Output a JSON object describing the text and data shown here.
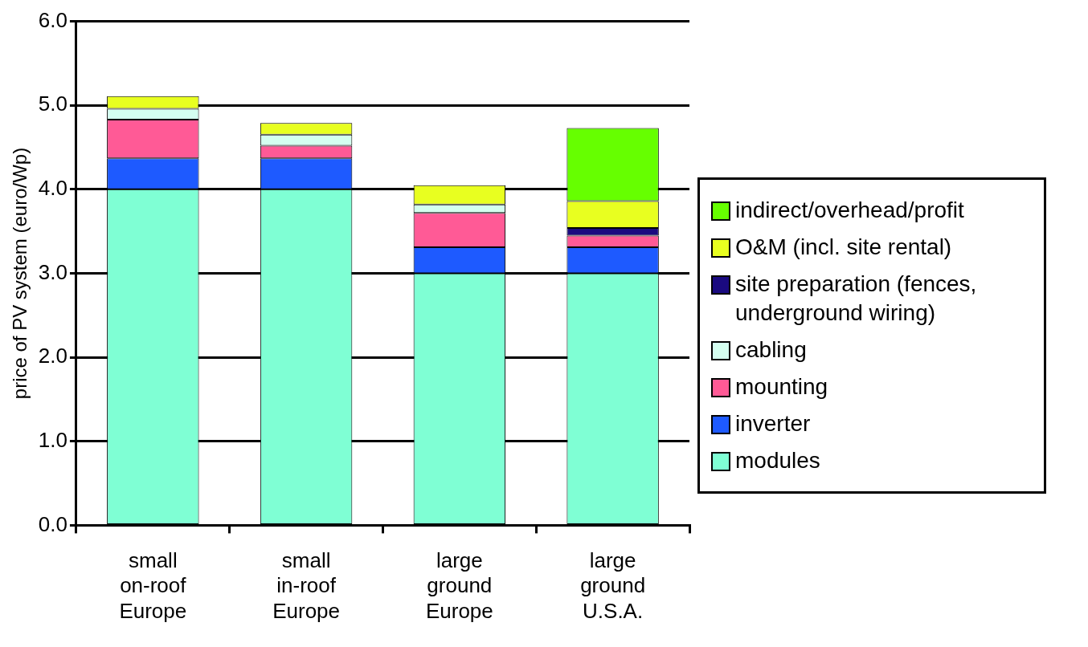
{
  "chart_data": {
    "type": "bar",
    "stacked": true,
    "ylabel": "price of PV system (euro/Wp)",
    "categories": [
      "small on-roof Europe",
      "small in-roof Europe",
      "large ground Europe",
      "large ground U.S.A."
    ],
    "series": [
      {
        "name": "modules",
        "color": "#7fffd4",
        "values": [
          4.0,
          4.0,
          3.0,
          3.0
        ]
      },
      {
        "name": "inverter",
        "color": "#1e5aff",
        "values": [
          0.37,
          0.37,
          0.31,
          0.31
        ]
      },
      {
        "name": "mounting",
        "color": "#ff5a96",
        "values": [
          0.46,
          0.15,
          0.41,
          0.14
        ]
      },
      {
        "name": "cabling",
        "color": "#d4fff0",
        "values": [
          0.13,
          0.13,
          0.1,
          0
        ]
      },
      {
        "name": "site preparation (fences, underground wiring)",
        "color": "#1a0a80",
        "values": [
          0,
          0,
          0,
          0.09
        ]
      },
      {
        "name": "O&M (incl. site rental)",
        "color": "#e8ff20",
        "values": [
          0.15,
          0.14,
          0.23,
          0.32
        ]
      },
      {
        "name": "indirect/overhead/profit",
        "color": "#66ff00",
        "values": [
          0,
          0,
          0,
          0.87
        ]
      }
    ],
    "ylim": [
      0,
      6
    ],
    "yticks": [
      {
        "value": 0,
        "label": "0.0"
      },
      {
        "value": 1,
        "label": "1.0"
      },
      {
        "value": 2,
        "label": "2.0"
      },
      {
        "value": 3,
        "label": "3.0"
      },
      {
        "value": 4,
        "label": "4.0"
      },
      {
        "value": 5,
        "label": "5.0"
      },
      {
        "value": 6,
        "label": "6.0"
      }
    ],
    "grid": "y",
    "legend": "right"
  }
}
